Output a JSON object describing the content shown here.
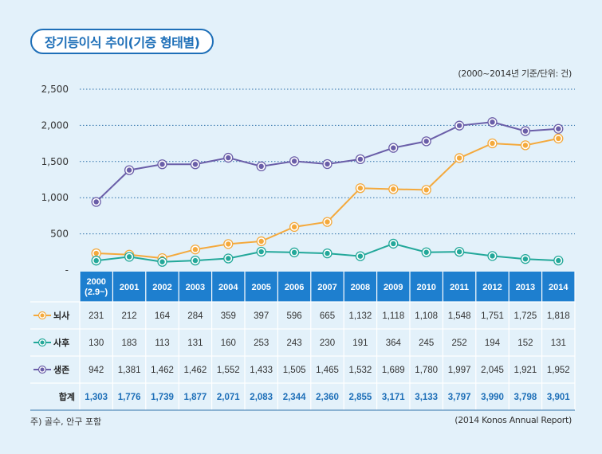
{
  "title": "장기등이식 추이(기증 형태별)",
  "unit_note": "(2000~2014년 기준/단위: 건)",
  "footnote": "주) 골수, 안구 포함",
  "source": "(2014 Konos Annual Report)",
  "colors": {
    "brain_dead": "#f4a93c",
    "deceased": "#23a89a",
    "living": "#6a5ea8",
    "header_bg": "#1e7fcf",
    "total_text": "#1e6fb8"
  },
  "chart_data": {
    "type": "line",
    "title": "장기등이식 추이(기증 형태별)",
    "xlabel": "",
    "ylabel": "",
    "ylim": [
      0,
      2500
    ],
    "yticks": [
      "-",
      "500",
      "1,000",
      "1,500",
      "2,000",
      "2,500"
    ],
    "ytick_values": [
      0,
      500,
      1000,
      1500,
      2000,
      2500
    ],
    "grid": true,
    "categories": [
      "2000",
      "2001",
      "2002",
      "2003",
      "2004",
      "2005",
      "2006",
      "2007",
      "2008",
      "2009",
      "2010",
      "2011",
      "2012",
      "2013",
      "2014"
    ],
    "category_sublabel": "(2.9~)",
    "series": [
      {
        "name": "뇌사",
        "key": "brain_dead",
        "values": [
          231,
          212,
          164,
          284,
          359,
          397,
          596,
          665,
          1132,
          1118,
          1108,
          1548,
          1751,
          1725,
          1818
        ],
        "labels": [
          "231",
          "212",
          "164",
          "284",
          "359",
          "397",
          "596",
          "665",
          "1,132",
          "1,118",
          "1,108",
          "1,548",
          "1,751",
          "1,725",
          "1,818"
        ]
      },
      {
        "name": "사후",
        "key": "deceased",
        "values": [
          130,
          183,
          113,
          131,
          160,
          253,
          243,
          230,
          191,
          364,
          245,
          252,
          194,
          152,
          131
        ],
        "labels": [
          "130",
          "183",
          "113",
          "131",
          "160",
          "253",
          "243",
          "230",
          "191",
          "364",
          "245",
          "252",
          "194",
          "152",
          "131"
        ]
      },
      {
        "name": "생존",
        "key": "living",
        "values": [
          942,
          1381,
          1462,
          1462,
          1552,
          1433,
          1505,
          1465,
          1532,
          1689,
          1780,
          1997,
          2045,
          1921,
          1952
        ],
        "labels": [
          "942",
          "1,381",
          "1,462",
          "1,462",
          "1,552",
          "1,433",
          "1,505",
          "1,465",
          "1,532",
          "1,689",
          "1,780",
          "1,997",
          "2,045",
          "1,921",
          "1,952"
        ]
      }
    ],
    "total": {
      "name": "합계",
      "labels": [
        "1,303",
        "1,776",
        "1,739",
        "1,877",
        "2,071",
        "2,083",
        "2,344",
        "2,360",
        "2,855",
        "3,171",
        "3,133",
        "3,797",
        "3,990",
        "3,798",
        "3,901"
      ]
    }
  }
}
